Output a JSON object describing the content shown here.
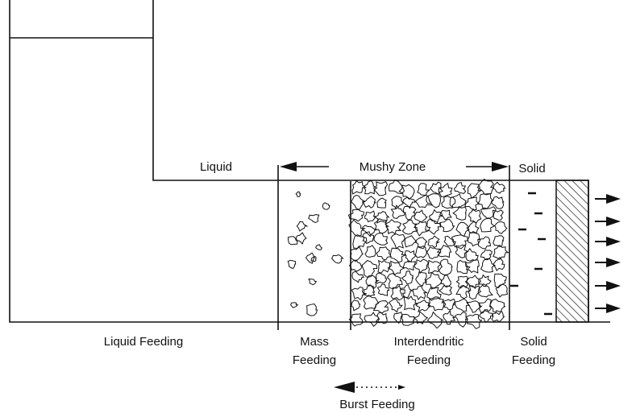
{
  "zones": {
    "liquid": "Liquid",
    "mushy": "Mushy Zone",
    "solid": "Solid"
  },
  "feeding": {
    "liquid": [
      "Liquid Feeding"
    ],
    "mass": [
      "Mass",
      "Feeding"
    ],
    "interdendritic": [
      "Interdendritic",
      "Feeding"
    ],
    "solid": [
      "Solid",
      "Feeding"
    ],
    "burst": [
      "Burst Feeding"
    ]
  }
}
